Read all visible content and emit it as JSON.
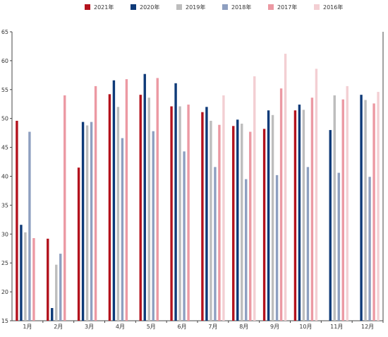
{
  "chart_data": {
    "type": "bar",
    "categories": [
      "1月",
      "2月",
      "3月",
      "4月",
      "5月",
      "6月",
      "7月",
      "8月",
      "9月",
      "10月",
      "11月",
      "12月"
    ],
    "ylim": [
      15,
      65
    ],
    "yticks": [
      15,
      20,
      25,
      30,
      35,
      40,
      45,
      50,
      55,
      60,
      65
    ],
    "grid": false,
    "legend_position": "top-center",
    "series": [
      {
        "name": "2021年",
        "color": "#b3121d",
        "values": [
          49.6,
          29.2,
          41.5,
          54.2,
          54.1,
          52.1,
          51.1,
          48.7,
          48.2,
          51.4,
          null,
          null
        ]
      },
      {
        "name": "2020年",
        "color": "#0e3a78",
        "values": [
          31.6,
          17.2,
          49.4,
          56.6,
          57.7,
          56.1,
          52.0,
          49.8,
          51.4,
          52.4,
          48.0,
          54.1
        ]
      },
      {
        "name": "2019年",
        "color": "#bdbdbd",
        "values": [
          30.3,
          24.7,
          48.8,
          52.0,
          53.6,
          52.1,
          49.6,
          49.1,
          50.6,
          51.5,
          54.0,
          53.2
        ]
      },
      {
        "name": "2018年",
        "color": "#8e9fc0",
        "values": [
          47.7,
          26.6,
          49.4,
          46.6,
          47.8,
          44.3,
          41.6,
          39.5,
          40.2,
          41.6,
          40.6,
          39.9
        ]
      },
      {
        "name": "2017年",
        "color": "#ec99a3",
        "values": [
          29.3,
          54.0,
          55.6,
          56.8,
          57.0,
          52.4,
          48.9,
          47.7,
          55.2,
          53.6,
          53.3,
          52.6
        ]
      },
      {
        "name": "2016年",
        "color": "#f3cfd3",
        "values": [
          null,
          null,
          null,
          null,
          null,
          null,
          54.0,
          57.3,
          61.2,
          58.6,
          55.6,
          54.6
        ]
      }
    ]
  }
}
